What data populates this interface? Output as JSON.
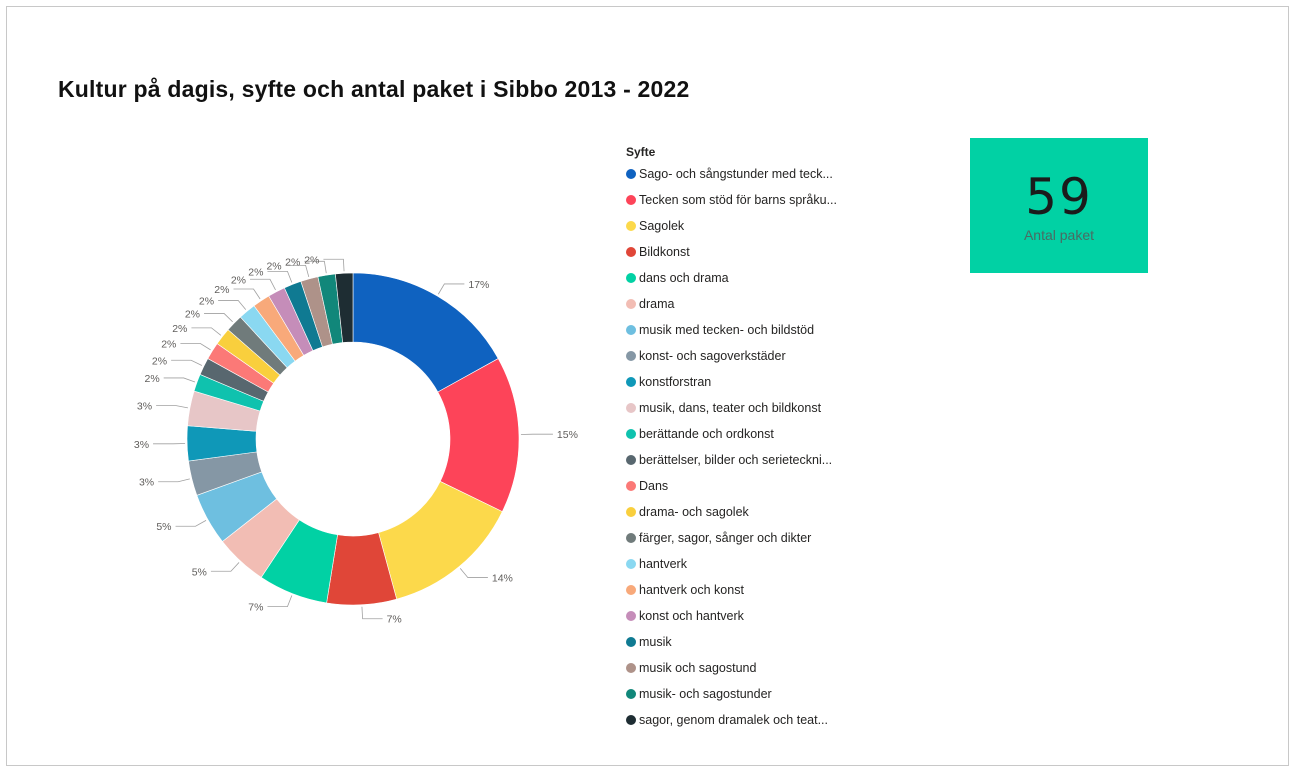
{
  "title": "Kultur på dagis, syfte och antal paket i Sibbo 2013 - 2022",
  "card": {
    "value": "59",
    "label": "Antal paket",
    "color": "#01D1A4"
  },
  "chart_data": {
    "type": "pie",
    "variant": "donut",
    "legend_title": "Syfte",
    "legend_position": "right",
    "slices": [
      {
        "label": "Sago- och sångstunder med teck...",
        "value": 10,
        "percent_label": "17%",
        "color": "#0F62C0"
      },
      {
        "label": "Tecken som stöd för barns språku...",
        "value": 9,
        "percent_label": "15%",
        "color": "#FD4459"
      },
      {
        "label": "Sagolek",
        "value": 8,
        "percent_label": "14%",
        "color": "#FCD94B"
      },
      {
        "label": "Bildkonst",
        "value": 4,
        "percent_label": "7%",
        "color": "#E04638"
      },
      {
        "label": "dans och drama",
        "value": 4,
        "percent_label": "7%",
        "color": "#01D1A4"
      },
      {
        "label": "drama",
        "value": 3,
        "percent_label": "5%",
        "color": "#F2BDB4"
      },
      {
        "label": "musik med tecken- och bildstöd",
        "value": 3,
        "percent_label": "5%",
        "color": "#6EBFE0"
      },
      {
        "label": "konst- och sagoverkstäder",
        "value": 2,
        "percent_label": "3%",
        "color": "#8597A5"
      },
      {
        "label": "konstforstran",
        "value": 2,
        "percent_label": "3%",
        "color": "#0F98B8"
      },
      {
        "label": "musik, dans, teater och bildkonst",
        "value": 2,
        "percent_label": "3%",
        "color": "#E7C6C7"
      },
      {
        "label": "berättande och ordkonst",
        "value": 1,
        "percent_label": "2%",
        "color": "#0FC2AE"
      },
      {
        "label": "berättelser, bilder och serieteckni...",
        "value": 1,
        "percent_label": "2%",
        "color": "#58676F"
      },
      {
        "label": "Dans",
        "value": 1,
        "percent_label": "2%",
        "color": "#FB7977"
      },
      {
        "label": "drama- och sagolek",
        "value": 1,
        "percent_label": "2%",
        "color": "#F9CF3D"
      },
      {
        "label": "färger, sagor, sånger och dikter",
        "value": 1,
        "percent_label": "2%",
        "color": "#707B7B"
      },
      {
        "label": "hantverk",
        "value": 1,
        "percent_label": "2%",
        "color": "#8AD8F1"
      },
      {
        "label": "hantverk och konst",
        "value": 1,
        "percent_label": "2%",
        "color": "#F8A97A"
      },
      {
        "label": "konst och hantverk",
        "value": 1,
        "percent_label": "2%",
        "color": "#C58DB9"
      },
      {
        "label": "musik",
        "value": 1,
        "percent_label": "2%",
        "color": "#0F7A92"
      },
      {
        "label": "musik och sagostund",
        "value": 1,
        "percent_label": "2%",
        "color": "#AE9289"
      },
      {
        "label": "musik- och sagostunder",
        "value": 1,
        "percent_label": "2%",
        "color": "#11877A"
      },
      {
        "label": "sagor, genom dramalek och teat...",
        "value": 1,
        "percent_label": "2%",
        "color": "#1E2D33"
      }
    ]
  }
}
